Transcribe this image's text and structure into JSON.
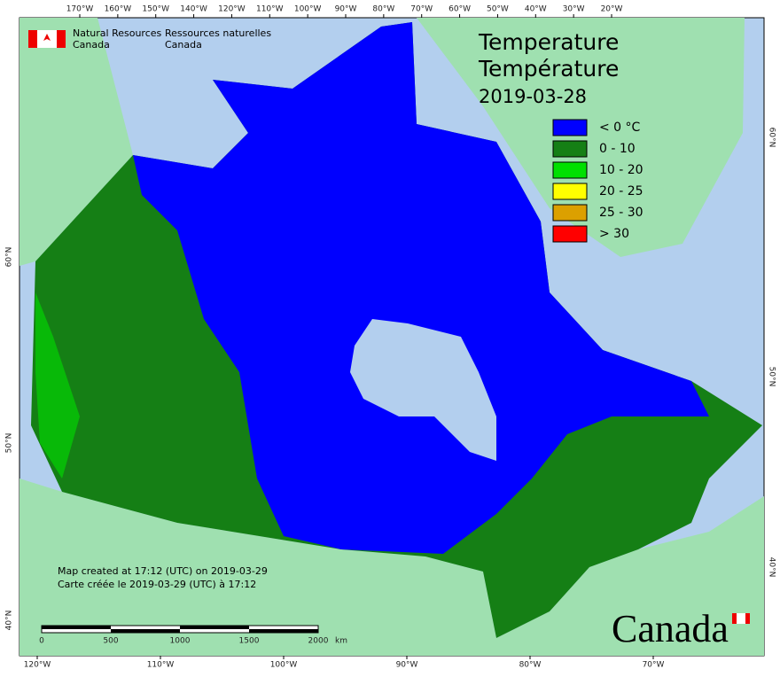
{
  "header": {
    "agency_en": [
      "Natural Resources",
      "Canada"
    ],
    "agency_fr": [
      "Ressources naturelles",
      "Canada"
    ]
  },
  "title": [
    "Temperature",
    "Température",
    "2019-03-28"
  ],
  "legend": [
    {
      "label": "< 0 °C",
      "color": "#0000ff"
    },
    {
      "label": "0 - 10",
      "color": "#157f15"
    },
    {
      "label": "10 - 20",
      "color": "#00e000"
    },
    {
      "label": "20 - 25",
      "color": "#ffff00"
    },
    {
      "label": "25 - 30",
      "color": "#dca000"
    },
    {
      "label": "> 30",
      "color": "#ff0000"
    }
  ],
  "graticule": {
    "top": [
      "170°W",
      "160°W",
      "150°W",
      "140°W",
      "120°W",
      "110°W",
      "100°W",
      "90°W",
      "80°W",
      "70°W",
      "60°W",
      "50°W",
      "40°W",
      "30°W",
      "20°W"
    ],
    "bottom": [
      "120°W",
      "110°W",
      "100°W",
      "90°W",
      "80°W",
      "70°W"
    ],
    "left": [
      "60°N",
      "50°N",
      "40°N"
    ],
    "right": [
      "60°N",
      "50°N",
      "40°N"
    ]
  },
  "note": [
    "Map created at 17:12 (UTC) on 2019-03-29",
    "Carte créée le 2019-03-29 (UTC) à 17:12"
  ],
  "scale_bar": {
    "labels": [
      "0",
      "500",
      "1000",
      "1500",
      "2000"
    ],
    "unit": "km"
  },
  "wordmark": "Canada"
}
